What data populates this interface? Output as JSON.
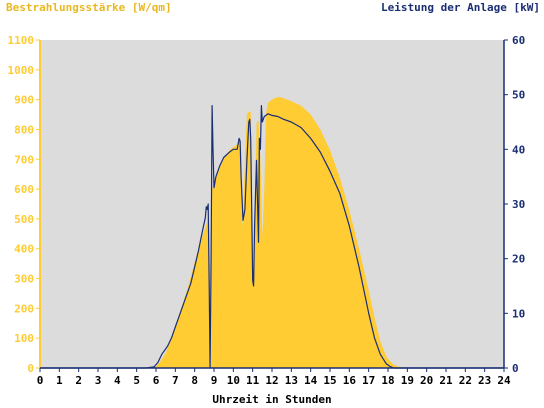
{
  "chart_data": {
    "type": "area",
    "left_axis_title": "Bestrahlungsstärke [W/qm]",
    "right_axis_title": "Leistung der Anlage [kW]",
    "xlabel": "Uhrzeit in Stunden",
    "xlim": [
      0,
      24
    ],
    "ylim_left": [
      0,
      1100
    ],
    "ylim_right": [
      0,
      60
    ],
    "x_ticks": [
      "0",
      "1",
      "2",
      "3",
      "4",
      "5",
      "6",
      "7",
      "8",
      "9",
      "10",
      "11",
      "12",
      "13",
      "14",
      "15",
      "16",
      "17",
      "18",
      "19",
      "20",
      "21",
      "22",
      "23",
      "24"
    ],
    "y_left_ticks": [
      "0",
      "100",
      "200",
      "300",
      "400",
      "500",
      "600",
      "700",
      "800",
      "900",
      "1000",
      "1100"
    ],
    "y_right_ticks": [
      "0",
      "10",
      "20",
      "30",
      "40",
      "50",
      "60"
    ],
    "grid": false,
    "colors": {
      "irradiance": "#ffcc33",
      "power": "#1a2e73",
      "plot_background": "#dcdcdc",
      "left_axis": "#ffcc33",
      "right_axis": "#1a2e73"
    },
    "series": [
      {
        "name": "Bestrahlungsstärke [W/qm]",
        "axis": "left",
        "x": [
          5.8,
          6.0,
          6.2,
          6.5,
          6.8,
          7.0,
          7.3,
          7.6,
          7.9,
          8.2,
          8.5,
          8.7,
          8.8,
          8.85,
          8.9,
          9.0,
          9.2,
          9.5,
          9.8,
          10.0,
          10.2,
          10.3,
          10.4,
          10.45,
          10.5,
          10.6,
          10.7,
          10.8,
          10.9,
          11.0,
          11.05,
          11.1,
          11.2,
          11.3,
          11.4,
          11.5,
          11.6,
          11.7,
          11.8,
          12.0,
          12.3,
          12.6,
          13.0,
          13.5,
          14.0,
          14.5,
          15.0,
          15.5,
          16.0,
          16.5,
          17.0,
          17.3,
          17.6,
          17.9,
          18.2,
          18.5,
          18.8,
          19.0,
          19.2
        ],
        "values": [
          0,
          5,
          20,
          50,
          100,
          140,
          200,
          260,
          330,
          400,
          460,
          500,
          20,
          0,
          600,
          620,
          660,
          700,
          730,
          740,
          750,
          770,
          750,
          500,
          480,
          700,
          850,
          860,
          860,
          380,
          300,
          420,
          820,
          830,
          700,
          440,
          600,
          860,
          890,
          900,
          910,
          905,
          895,
          880,
          850,
          800,
          730,
          640,
          530,
          400,
          260,
          170,
          90,
          40,
          15,
          5,
          2,
          0,
          0
        ]
      },
      {
        "name": "Leistung der Anlage [kW]",
        "axis": "right",
        "x": [
          0,
          5.5,
          5.9,
          6.1,
          6.3,
          6.6,
          6.8,
          7.0,
          7.2,
          7.5,
          7.8,
          8.0,
          8.2,
          8.4,
          8.55,
          8.6,
          8.65,
          8.7,
          8.75,
          8.8,
          8.85,
          8.9,
          8.95,
          9.0,
          9.1,
          9.3,
          9.5,
          9.8,
          10.0,
          10.2,
          10.3,
          10.35,
          10.4,
          10.5,
          10.6,
          10.7,
          10.8,
          10.85,
          10.9,
          11.0,
          11.05,
          11.1,
          11.2,
          11.3,
          11.35,
          11.4,
          11.45,
          11.5,
          11.6,
          11.8,
          12.0,
          12.3,
          12.6,
          13.0,
          13.5,
          14.0,
          14.5,
          15.0,
          15.5,
          16.0,
          16.5,
          17.0,
          17.3,
          17.6,
          17.9,
          18.1,
          18.3,
          18.5,
          18.7,
          19.0,
          24
        ],
        "values": [
          0,
          0,
          0.2,
          1,
          2.5,
          4,
          5.5,
          7.5,
          9.5,
          12.5,
          15.5,
          18.5,
          21.5,
          25,
          27.5,
          29.5,
          29,
          30,
          15,
          0,
          20,
          48,
          40,
          33,
          35,
          37,
          38.5,
          39.5,
          40,
          40,
          42,
          41.5,
          35,
          27,
          29,
          38,
          45,
          45.5,
          42,
          16,
          15,
          26,
          38,
          23,
          42,
          40,
          48,
          45,
          46,
          46.5,
          46.2,
          46,
          45.5,
          45,
          44,
          42,
          39.5,
          36,
          32,
          26,
          18.5,
          10,
          5.5,
          2.5,
          0.8,
          0.3,
          0,
          0,
          0,
          0,
          0
        ]
      }
    ]
  }
}
